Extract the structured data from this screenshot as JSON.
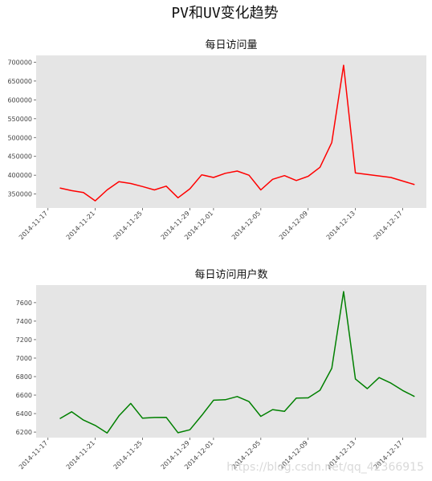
{
  "figure": {
    "title": "PV和UV变化趋势",
    "watermark": "https://blog.csdn.net/qq_42366915"
  },
  "chart_data": [
    {
      "type": "line",
      "title": "每日访问量",
      "color": "#ff0000",
      "background": "#e5e5e5",
      "grid": false,
      "ylim": [
        313000,
        718000
      ],
      "yticks": [
        350000,
        400000,
        450000,
        500000,
        550000,
        600000,
        650000,
        700000
      ],
      "ytick_labels": [
        "350000",
        "400000",
        "450000",
        "500000",
        "550000",
        "600000",
        "650000",
        "700000"
      ],
      "xlim": [
        "2014-11-16",
        "2014-12-19"
      ],
      "xticks": [
        "2014-11-17",
        "2014-11-21",
        "2014-11-25",
        "2014-11-29",
        "2014-12-01",
        "2014-12-05",
        "2014-12-09",
        "2014-12-13",
        "2014-12-17"
      ],
      "xtick_labels": [
        "2014-11-17",
        "2014-11-21",
        "2014-11-25",
        "2014-11-29",
        "2014-12-01",
        "2014-12-05",
        "2014-12-09",
        "2014-12-13",
        "2014-12-17"
      ],
      "x": [
        "2014-11-18",
        "2014-11-19",
        "2014-11-20",
        "2014-11-21",
        "2014-11-22",
        "2014-11-23",
        "2014-11-24",
        "2014-11-25",
        "2014-11-26",
        "2014-11-27",
        "2014-11-28",
        "2014-11-29",
        "2014-11-30",
        "2014-12-01",
        "2014-12-02",
        "2014-12-03",
        "2014-12-04",
        "2014-12-05",
        "2014-12-06",
        "2014-12-07",
        "2014-12-08",
        "2014-12-09",
        "2014-12-10",
        "2014-12-11",
        "2014-12-12",
        "2014-12-13",
        "2014-12-16",
        "2014-12-18"
      ],
      "values": [
        366000,
        359000,
        354000,
        332000,
        361000,
        383000,
        378000,
        370000,
        361000,
        371000,
        340000,
        364000,
        401000,
        394000,
        405000,
        411000,
        400000,
        361000,
        389000,
        399000,
        386000,
        397000,
        421000,
        487000,
        692000,
        406000,
        394000,
        375000
      ]
    },
    {
      "type": "line",
      "title": "每日访问用户数",
      "color": "#008000",
      "background": "#e5e5e5",
      "grid": false,
      "ylim": [
        6140,
        7790
      ],
      "yticks": [
        6200,
        6400,
        6600,
        6800,
        7000,
        7200,
        7400,
        7600
      ],
      "ytick_labels": [
        "6200",
        "6400",
        "6600",
        "6800",
        "7000",
        "7200",
        "7400",
        "7600"
      ],
      "xlim": [
        "2014-11-16",
        "2014-12-19"
      ],
      "xticks": [
        "2014-11-17",
        "2014-11-21",
        "2014-11-25",
        "2014-11-29",
        "2014-12-01",
        "2014-12-05",
        "2014-12-09",
        "2014-12-13",
        "2014-12-17"
      ],
      "xtick_labels": [
        "2014-11-17",
        "2014-11-21",
        "2014-11-25",
        "2014-11-29",
        "2014-12-01",
        "2014-12-05",
        "2014-12-09",
        "2014-12-13",
        "2014-12-17"
      ],
      "x": [
        "2014-11-18",
        "2014-11-19",
        "2014-11-20",
        "2014-11-21",
        "2014-11-22",
        "2014-11-23",
        "2014-11-24",
        "2014-11-25",
        "2014-11-26",
        "2014-11-27",
        "2014-11-28",
        "2014-11-29",
        "2014-11-30",
        "2014-12-01",
        "2014-12-02",
        "2014-12-03",
        "2014-12-04",
        "2014-12-05",
        "2014-12-06",
        "2014-12-07",
        "2014-12-08",
        "2014-12-09",
        "2014-12-10",
        "2014-12-11",
        "2014-12-12",
        "2014-12-13",
        "2014-12-14",
        "2014-12-15",
        "2014-12-16",
        "2014-12-17",
        "2014-12-18"
      ],
      "values": [
        6345,
        6420,
        6330,
        6272,
        6190,
        6375,
        6510,
        6350,
        6358,
        6360,
        6193,
        6225,
        6380,
        6545,
        6550,
        6585,
        6530,
        6370,
        6443,
        6425,
        6567,
        6570,
        6652,
        6890,
        7720,
        6775,
        6670,
        6790,
        6730,
        6650,
        6585
      ]
    }
  ]
}
